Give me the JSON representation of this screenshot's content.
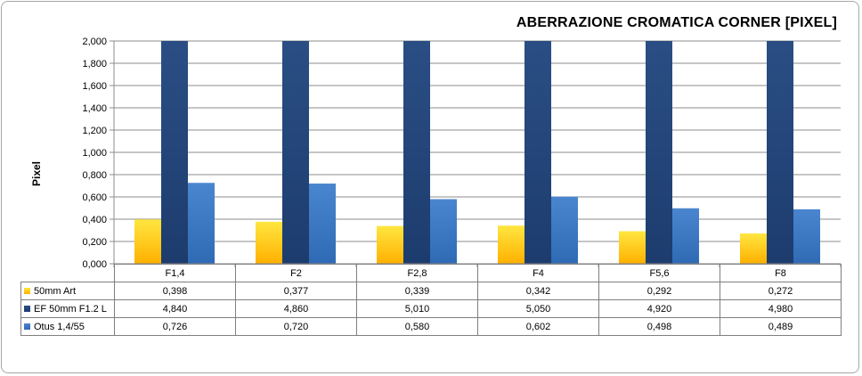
{
  "chart_data": {
    "type": "bar",
    "title": "ABERRAZIONE CROMATICA CORNER [PIXEL]",
    "ylabel": "Pixel",
    "xlabel": "",
    "ylim": [
      0,
      2
    ],
    "yticks": [
      "0,000",
      "0,200",
      "0,400",
      "0,600",
      "0,800",
      "1,000",
      "1,200",
      "1,400",
      "1,600",
      "1,800",
      "2,000"
    ],
    "categories": [
      "F1,4",
      "F2",
      "F2,8",
      "F4",
      "F5,6",
      "F8"
    ],
    "grid": true,
    "legend": "data-table",
    "series": [
      {
        "name": "50mm Art",
        "values": [
          0.398,
          0.377,
          0.339,
          0.342,
          0.292,
          0.272
        ],
        "labels": [
          "0,398",
          "0,377",
          "0,339",
          "0,342",
          "0,292",
          "0,272"
        ],
        "color_top": "#ffe640",
        "color_bottom": "#ffb000"
      },
      {
        "name": "EF 50mm F1.2  L",
        "values": [
          4.84,
          4.86,
          5.01,
          5.05,
          4.92,
          4.98
        ],
        "labels": [
          "4,840",
          "4,860",
          "5,010",
          "5,050",
          "4,920",
          "4,980"
        ],
        "color_top": "#2a4e84",
        "color_bottom": "#1d3c6e"
      },
      {
        "name": "Otus 1,4/55",
        "values": [
          0.726,
          0.72,
          0.58,
          0.602,
          0.498,
          0.489
        ],
        "labels": [
          "0,726",
          "0,720",
          "0,580",
          "0,602",
          "0,498",
          "0,489"
        ],
        "color_top": "#4a86cf",
        "color_bottom": "#2f6ab5"
      }
    ]
  }
}
